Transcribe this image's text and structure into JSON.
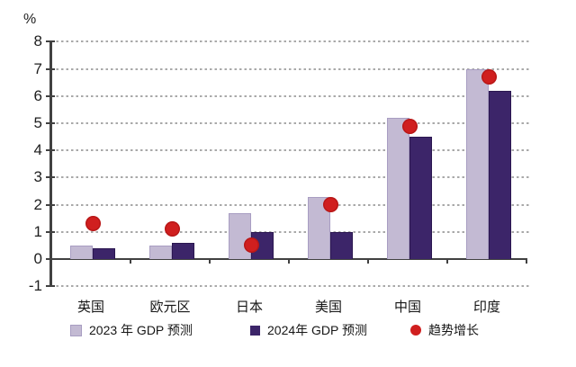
{
  "chart_data": {
    "type": "bar",
    "title": "",
    "ylabel_unit": "%",
    "categories": [
      "英国",
      "欧元区",
      "日本",
      "美国",
      "中国",
      "印度"
    ],
    "series": [
      {
        "name": "2023 年 GDP 预测",
        "kind": "bar",
        "color": "#c3bad3",
        "values": [
          0.5,
          0.5,
          1.7,
          2.3,
          5.2,
          7.0
        ]
      },
      {
        "name": "2024年 GDP 预测",
        "kind": "bar",
        "color": "#3c2569",
        "values": [
          0.4,
          0.6,
          1.0,
          1.0,
          4.5,
          6.2
        ]
      },
      {
        "name": "趋势增长",
        "kind": "point",
        "color": "#d01f1f",
        "values": [
          1.3,
          1.1,
          0.5,
          2.0,
          4.9,
          6.7
        ]
      }
    ],
    "ylim": [
      -1,
      8
    ],
    "ytick_step": 1,
    "yticks": [
      8,
      7,
      6,
      5,
      4,
      3,
      2,
      1,
      0,
      -1
    ],
    "grid": "horizontal-dashed",
    "legend_position": "bottom"
  },
  "colors": {
    "axis": "#414141",
    "gridline": "#a9a9a9",
    "text": "#161616",
    "background": "#ffffff"
  }
}
